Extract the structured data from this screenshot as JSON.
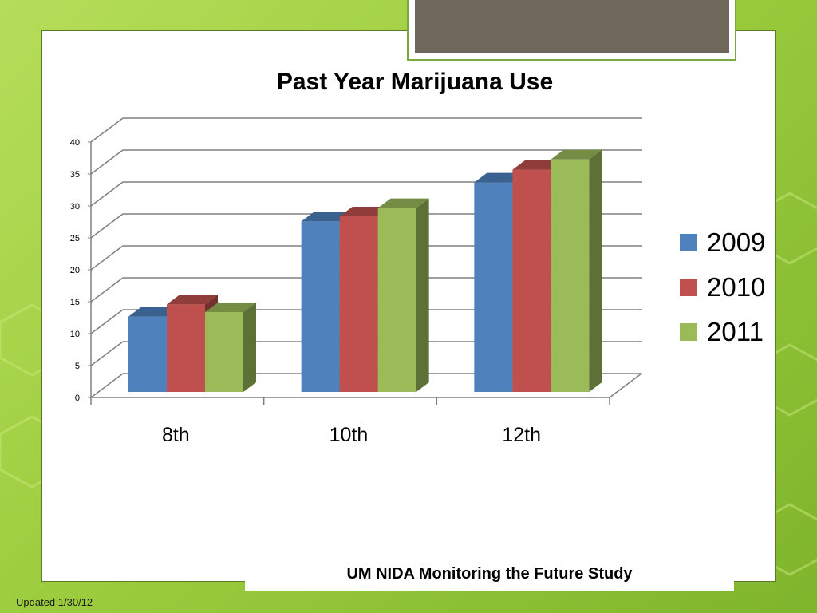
{
  "slide": {
    "footer": "UM NIDA Monitoring  the Future Study",
    "updated": "Updated 1/30/12"
  },
  "colors": {
    "2009": "#4f81bd",
    "2010": "#c0504d",
    "2011": "#9bbb59",
    "background": "#9ccd3e",
    "header_tab": "#6f675a"
  },
  "chart_data": {
    "type": "bar",
    "title": "Past Year Marijuana Use",
    "categories": [
      "8th",
      "10th",
      "12th"
    ],
    "series": [
      {
        "name": "2009",
        "values": [
          11.8,
          26.7,
          32.8
        ]
      },
      {
        "name": "2010",
        "values": [
          13.7,
          27.5,
          34.8
        ]
      },
      {
        "name": "2011",
        "values": [
          12.5,
          28.8,
          36.4
        ]
      }
    ],
    "ylim": [
      0,
      40
    ],
    "yticks": [
      "0",
      "5",
      "10",
      "15",
      "20",
      "25",
      "30",
      "35",
      "40"
    ],
    "grid": true,
    "legend": "right",
    "style": "3d"
  }
}
